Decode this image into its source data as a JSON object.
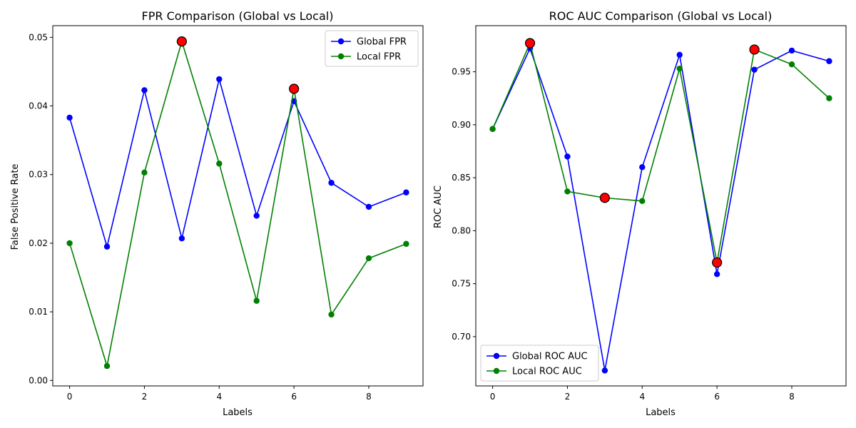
{
  "chart_data": [
    {
      "type": "line",
      "title": "FPR Comparison (Global vs Local)",
      "xlabel": "Labels",
      "ylabel": "False Positive Rate",
      "xlim": [
        -0.45,
        9.45
      ],
      "ylim": [
        -0.0008,
        0.0517
      ],
      "xticks": [
        0,
        2,
        4,
        6,
        8
      ],
      "yticks": [
        0.0,
        0.01,
        0.02,
        0.03,
        0.04,
        0.05
      ],
      "ytick_labels": [
        "0.00",
        "0.01",
        "0.02",
        "0.03",
        "0.04",
        "0.05"
      ],
      "xtick_labels": [
        "0",
        "2",
        "4",
        "6",
        "8"
      ],
      "legend_position": "top-right",
      "x": [
        0,
        1,
        2,
        3,
        4,
        5,
        6,
        7,
        8,
        9
      ],
      "series": [
        {
          "name": "Global FPR",
          "color": "#0000ff",
          "values": [
            0.0383,
            0.0195,
            0.0423,
            0.0207,
            0.0439,
            0.024,
            0.0407,
            0.0288,
            0.0253,
            0.0274
          ]
        },
        {
          "name": "Local FPR",
          "color": "#008000",
          "values": [
            0.02,
            0.0021,
            0.0303,
            0.0494,
            0.0316,
            0.0116,
            0.0425,
            0.0096,
            0.0178,
            0.0199
          ]
        }
      ],
      "highlight_color": "#ff0000",
      "highlights": [
        {
          "x": 3,
          "y": 0.0494
        },
        {
          "x": 6,
          "y": 0.0425
        }
      ]
    },
    {
      "type": "line",
      "title": "ROC AUC Comparison (Global vs Local)",
      "xlabel": "Labels",
      "ylabel": "ROC AUC",
      "xlim": [
        -0.45,
        9.45
      ],
      "ylim": [
        0.6535,
        0.9935
      ],
      "xticks": [
        0,
        2,
        4,
        6,
        8
      ],
      "yticks": [
        0.7,
        0.75,
        0.8,
        0.85,
        0.9,
        0.95
      ],
      "ytick_labels": [
        "0.70",
        "0.75",
        "0.80",
        "0.85",
        "0.90",
        "0.95"
      ],
      "xtick_labels": [
        "0",
        "2",
        "4",
        "6",
        "8"
      ],
      "legend_position": "bottom-left",
      "x": [
        0,
        1,
        2,
        3,
        4,
        5,
        6,
        7,
        8,
        9
      ],
      "series": [
        {
          "name": "Global ROC AUC",
          "color": "#0000ff",
          "values": [
            0.896,
            0.972,
            0.87,
            0.668,
            0.86,
            0.966,
            0.759,
            0.952,
            0.97,
            0.96
          ]
        },
        {
          "name": "Local ROC AUC",
          "color": "#008000",
          "values": [
            0.896,
            0.977,
            0.837,
            0.831,
            0.828,
            0.953,
            0.77,
            0.971,
            0.957,
            0.925
          ]
        }
      ],
      "highlight_color": "#ff0000",
      "highlights": [
        {
          "x": 1,
          "y": 0.977
        },
        {
          "x": 3,
          "y": 0.831
        },
        {
          "x": 6,
          "y": 0.77
        },
        {
          "x": 7,
          "y": 0.971
        }
      ]
    }
  ]
}
